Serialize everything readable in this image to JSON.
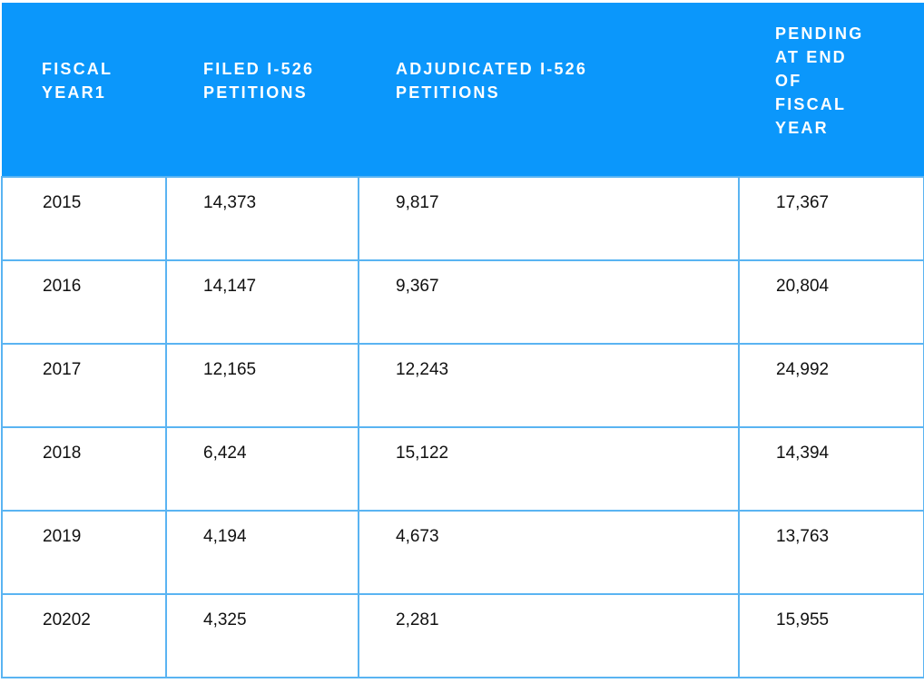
{
  "table": {
    "header": [
      "FISCAL YEAR1",
      "FILED I-526 PETITIONS",
      "ADJUDICATED I-526 PETITIONS",
      "PENDING AT END OF FISCAL YEAR"
    ],
    "rows": [
      [
        "2015",
        "14,373",
        "9,817",
        "17,367"
      ],
      [
        "2016",
        "14,147",
        "9,367",
        "20,804"
      ],
      [
        "2017",
        "12,165",
        "12,243",
        "24,992"
      ],
      [
        "2018",
        "6,424",
        "15,122",
        "14,394"
      ],
      [
        "2019",
        "4,194",
        "4,673",
        "13,763"
      ],
      [
        "20202",
        "4,325",
        "2,281",
        "15,955"
      ]
    ]
  }
}
